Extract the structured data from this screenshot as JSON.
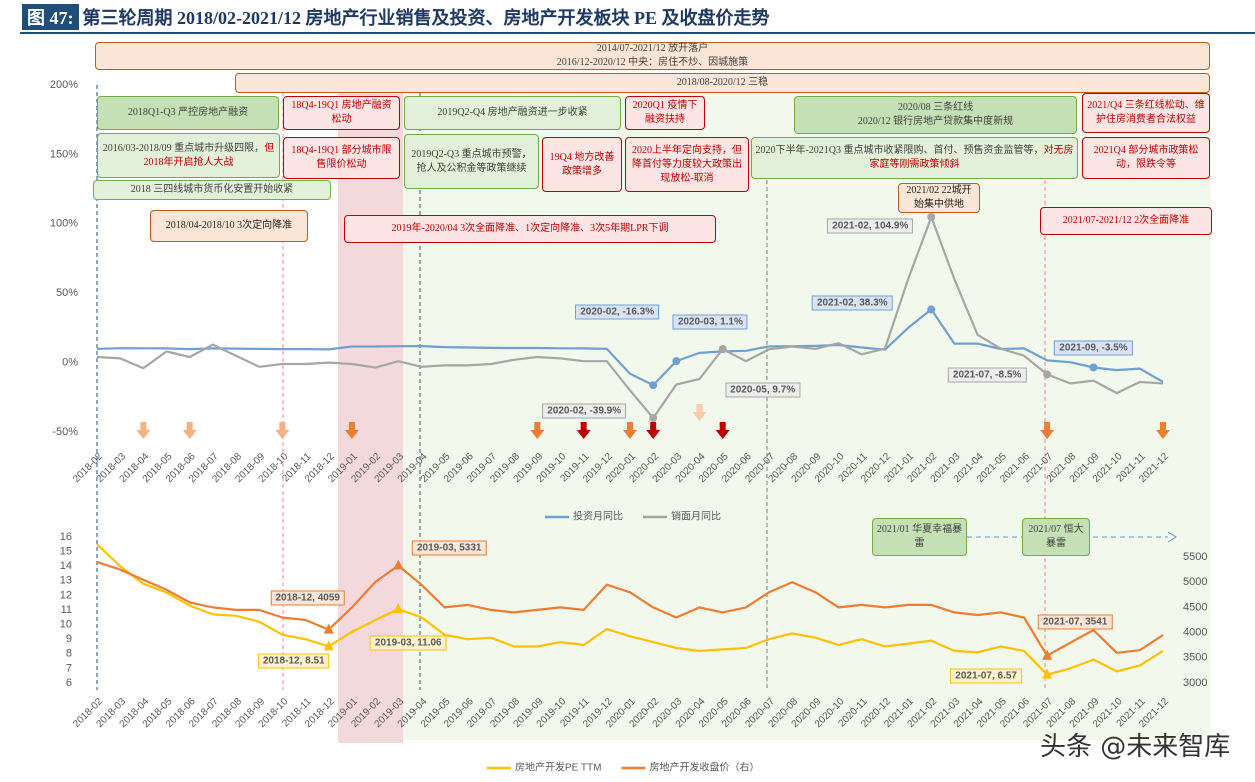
{
  "header": {
    "label": "图 47:",
    "title": "第三轮周期 2018/02-2021/12 房地产行业销售及投资、房地产开发板块 PE 及收盘价走势"
  },
  "watermark": "头条 @未来智库",
  "chart_data": [
    {
      "type": "line",
      "categories": [
        "2018-02",
        "2018-03",
        "2018-04",
        "2018-05",
        "2018-06",
        "2018-07",
        "2018-08",
        "2018-09",
        "2018-10",
        "2018-11",
        "2018-12",
        "2019-01",
        "2019-02",
        "2019-03",
        "2019-04",
        "2019-05",
        "2019-06",
        "2019-07",
        "2019-08",
        "2019-09",
        "2019-10",
        "2019-11",
        "2019-12",
        "2020-01",
        "2020-02",
        "2020-03",
        "2020-04",
        "2020-05",
        "2020-06",
        "2020-07",
        "2020-08",
        "2020-09",
        "2020-10",
        "2020-11",
        "2020-12",
        "2021-01",
        "2021-02",
        "2021-03",
        "2021-04",
        "2021-05",
        "2021-06",
        "2021-07",
        "2021-08",
        "2021-09",
        "2021-10",
        "2021-11",
        "2021-12"
      ],
      "ylim": [
        -50,
        200
      ],
      "yticks": [
        {
          "value": -50,
          "label": "-50%"
        },
        {
          "value": 0,
          "label": "0%"
        },
        {
          "value": 50,
          "label": "50%"
        },
        {
          "value": 100,
          "label": "100%"
        },
        {
          "value": 150,
          "label": "150%"
        },
        {
          "value": 200,
          "label": "200%"
        }
      ],
      "series": [
        {
          "name": "投资月同比",
          "color": "#6fa0d4",
          "values": [
            9.9,
            10.4,
            10.3,
            10.2,
            9.7,
            10.2,
            10.1,
            9.9,
            9.7,
            9.7,
            9.5,
            11.6,
            11.6,
            11.8,
            11.9,
            11.2,
            10.9,
            10.6,
            10.5,
            10.5,
            10.3,
            10.2,
            9.9,
            -8,
            -16.3,
            1.1,
            7.0,
            8.1,
            8.5,
            11.7,
            11.8,
            12.0,
            12.7,
            10.9,
            9.3,
            25,
            38.3,
            13.7,
            13.7,
            9.8,
            10.2,
            1.6,
            0.3,
            -3.5,
            -5.4,
            -4.3,
            -13.9
          ],
          "value_labels": [
            null,
            null,
            null,
            null,
            null,
            null,
            null,
            null,
            null,
            null,
            null,
            null,
            null,
            null,
            null,
            null,
            null,
            null,
            null,
            null,
            null,
            null,
            null,
            null,
            "2020-02, -16.3%",
            "2020-03, 1.1%",
            null,
            null,
            null,
            null,
            null,
            null,
            null,
            null,
            null,
            null,
            "2021-02, 38.3%",
            null,
            null,
            null,
            null,
            null,
            null,
            "2021-09, -3.5%",
            null,
            null,
            null
          ]
        },
        {
          "name": "销面月同比",
          "color": "#a6a6a6",
          "values": [
            4,
            3,
            -4,
            8,
            4,
            13,
            5,
            -3,
            -1,
            -1,
            0,
            -1,
            -3.6,
            1,
            -3,
            -2,
            -2,
            -1,
            2,
            4,
            3,
            1,
            1,
            -20,
            -39.9,
            -15.8,
            -11.8,
            9.7,
            1,
            9.6,
            11.6,
            9.9,
            14,
            6,
            10,
            60,
            104.9,
            60,
            20,
            10,
            5,
            -8.5,
            -15,
            -13,
            -22,
            -14,
            -15
          ],
          "value_labels": [
            null,
            null,
            null,
            null,
            null,
            null,
            null,
            null,
            null,
            null,
            null,
            null,
            null,
            null,
            null,
            null,
            null,
            null,
            null,
            null,
            null,
            null,
            null,
            null,
            "2020-02, -39.9%",
            null,
            null,
            "2020-05, 9.7%",
            null,
            null,
            null,
            null,
            null,
            null,
            null,
            null,
            "2021-02, 104.9%",
            null,
            null,
            null,
            null,
            "2021-07, -8.5%",
            null,
            null,
            null,
            null,
            null
          ]
        }
      ],
      "annotations": [
        {
          "lines": [
            "2014/07-2021/12 放开落户",
            "2016/12-2020/12 中央：房住不炒、因城施策"
          ]
        },
        {
          "lines": [
            "2018/08-2020/12 三稳"
          ]
        },
        {
          "lines": [
            "2018Q1-Q3 严控房地产融资"
          ]
        },
        {
          "lines": [
            "18Q4-19Q1 房地产融资松动"
          ]
        },
        {
          "lines": [
            "2019Q2-Q4 房地产融资进一步收紧"
          ]
        },
        {
          "lines": [
            "2020Q1 疫情下融资扶持"
          ]
        },
        {
          "lines": [
            "2020/08 三条红线",
            "2020/12 银行房地产贷款集中度新规"
          ]
        },
        {
          "lines": [
            "2021/Q4 三条红线松动、维护住房消费者合法权益"
          ]
        },
        {
          "lines": [
            "2016/03-2018/09 重点城市升级四限，",
            "但2018年开启抢人大战"
          ]
        },
        {
          "lines": [
            "18Q4-19Q1 部分城市限售限价松动"
          ]
        },
        {
          "lines": [
            "2019Q2-Q3 重点城市预警，抢人及公积金等政策继续"
          ]
        },
        {
          "lines": [
            "19Q4 地方改善政策增多"
          ]
        },
        {
          "lines": [
            "2020上半年定向支持，但降首付等力度较大政策出现放松-取消"
          ]
        },
        {
          "lines": [
            "2020下半年-2021Q3 重点城市收紧限购、首付、预售资金监管等，",
            "对无房家庭等刚需政策倾斜"
          ]
        },
        {
          "lines": [
            "2021Q4 部分城市政策松动，限跌令等"
          ]
        },
        {
          "lines": [
            "2018 三四线城市货币化安置开始收紧"
          ]
        },
        {
          "lines": [
            "2018/04-2018/10 3次定向降准"
          ]
        },
        {
          "lines": [
            "2019年-2020/04 3次全面降准、1次定向降准、3次5年期LPR下调"
          ]
        },
        {
          "lines": [
            "2021/02 22城开始集中供地"
          ]
        },
        {
          "lines": [
            "2021/07-2021/12 2次全面降准"
          ]
        }
      ]
    },
    {
      "type": "line",
      "categories": [
        "2018-02",
        "2018-03",
        "2018-04",
        "2018-05",
        "2018-06",
        "2018-07",
        "2018-08",
        "2018-09",
        "2018-10",
        "2018-11",
        "2018-12",
        "2019-01",
        "2019-02",
        "2019-03",
        "2019-04",
        "2019-05",
        "2019-06",
        "2019-07",
        "2019-08",
        "2019-09",
        "2019-10",
        "2019-11",
        "2019-12",
        "2020-01",
        "2020-02",
        "2020-03",
        "2020-04",
        "2020-05",
        "2020-06",
        "2020-07",
        "2020-08",
        "2020-09",
        "2020-10",
        "2020-11",
        "2020-12",
        "2021-01",
        "2021-02",
        "2021-03",
        "2021-04",
        "2021-05",
        "2021-06",
        "2021-07",
        "2021-08",
        "2021-09",
        "2021-10",
        "2021-11",
        "2021-12"
      ],
      "ylim": [
        6,
        16
      ],
      "yticks": [
        6,
        7,
        8,
        9,
        10,
        11,
        12,
        13,
        14,
        15,
        16
      ],
      "y2lim": [
        3000,
        5500
      ],
      "y2ticks": [
        3000,
        3500,
        4000,
        4500,
        5000,
        5500
      ],
      "series": [
        {
          "name": "房地产开发PE TTM",
          "color": "#ffc000",
          "values": [
            15.5,
            14,
            12.8,
            12.2,
            11.3,
            10.7,
            10.6,
            10.2,
            9.3,
            9.0,
            8.51,
            9.5,
            10.3,
            11.06,
            10.5,
            9.3,
            9.0,
            9.1,
            8.5,
            8.5,
            8.8,
            8.6,
            9.7,
            9.2,
            8.8,
            8.4,
            8.2,
            8.3,
            8.4,
            9.0,
            9.4,
            9.1,
            8.6,
            9.0,
            8.5,
            8.7,
            8.9,
            8.2,
            8.1,
            8.5,
            8.2,
            6.57,
            7.0,
            7.6,
            6.8,
            7.2,
            8.2
          ],
          "value_labels": [
            null,
            null,
            null,
            null,
            null,
            null,
            null,
            null,
            null,
            null,
            "2018-12, 8.51",
            null,
            null,
            "2019-03, 11.06",
            null,
            null,
            null,
            null,
            null,
            null,
            null,
            null,
            null,
            null,
            null,
            null,
            null,
            null,
            null,
            null,
            null,
            null,
            null,
            null,
            null,
            null,
            null,
            null,
            null,
            null,
            null,
            "2021-07, 6.57",
            null,
            null,
            null,
            null,
            null
          ]
        },
        {
          "name": "房地产开发收盘价（右）",
          "color": "#ed7d31",
          "axis": "y2",
          "values": [
            5400,
            5250,
            5050,
            4850,
            4600,
            4500,
            4450,
            4450,
            4300,
            4250,
            4059,
            4500,
            5000,
            5331,
            4950,
            4500,
            4550,
            4450,
            4400,
            4450,
            4500,
            4450,
            4950,
            4800,
            4500,
            4300,
            4500,
            4400,
            4500,
            4800,
            5000,
            4800,
            4500,
            4550,
            4500,
            4550,
            4550,
            4400,
            4350,
            4400,
            4300,
            3541,
            3800,
            4050,
            3600,
            3650,
            3950
          ],
          "value_labels": [
            null,
            null,
            null,
            null,
            null,
            null,
            null,
            null,
            null,
            null,
            "2018-12, 4059",
            null,
            null,
            "2019-03, 5331",
            null,
            null,
            null,
            null,
            null,
            null,
            null,
            null,
            null,
            null,
            null,
            null,
            null,
            null,
            null,
            null,
            null,
            null,
            null,
            null,
            null,
            null,
            null,
            null,
            null,
            null,
            null,
            "2021-07, 3541",
            null,
            null,
            null,
            null,
            null
          ]
        }
      ],
      "annotations": [
        {
          "lines": [
            "2021/01 华夏幸福暴雷"
          ]
        },
        {
          "lines": [
            "2021/07 恒大暴雷"
          ]
        }
      ]
    }
  ]
}
